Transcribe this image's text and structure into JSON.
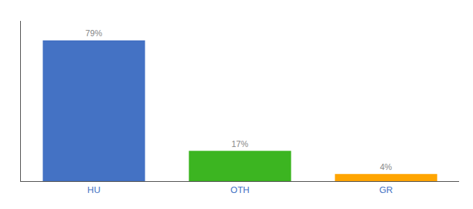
{
  "chart_data": {
    "type": "bar",
    "categories": [
      "HU",
      "OTH",
      "GR"
    ],
    "values": [
      79,
      17,
      4
    ],
    "value_labels": [
      "79%",
      "17%",
      "4%"
    ],
    "colors": [
      "#4472c4",
      "#3cb521",
      "#ffa500"
    ],
    "ylim": [
      0,
      90
    ],
    "tick_labels": "x",
    "data_labels": true,
    "grid": false
  }
}
